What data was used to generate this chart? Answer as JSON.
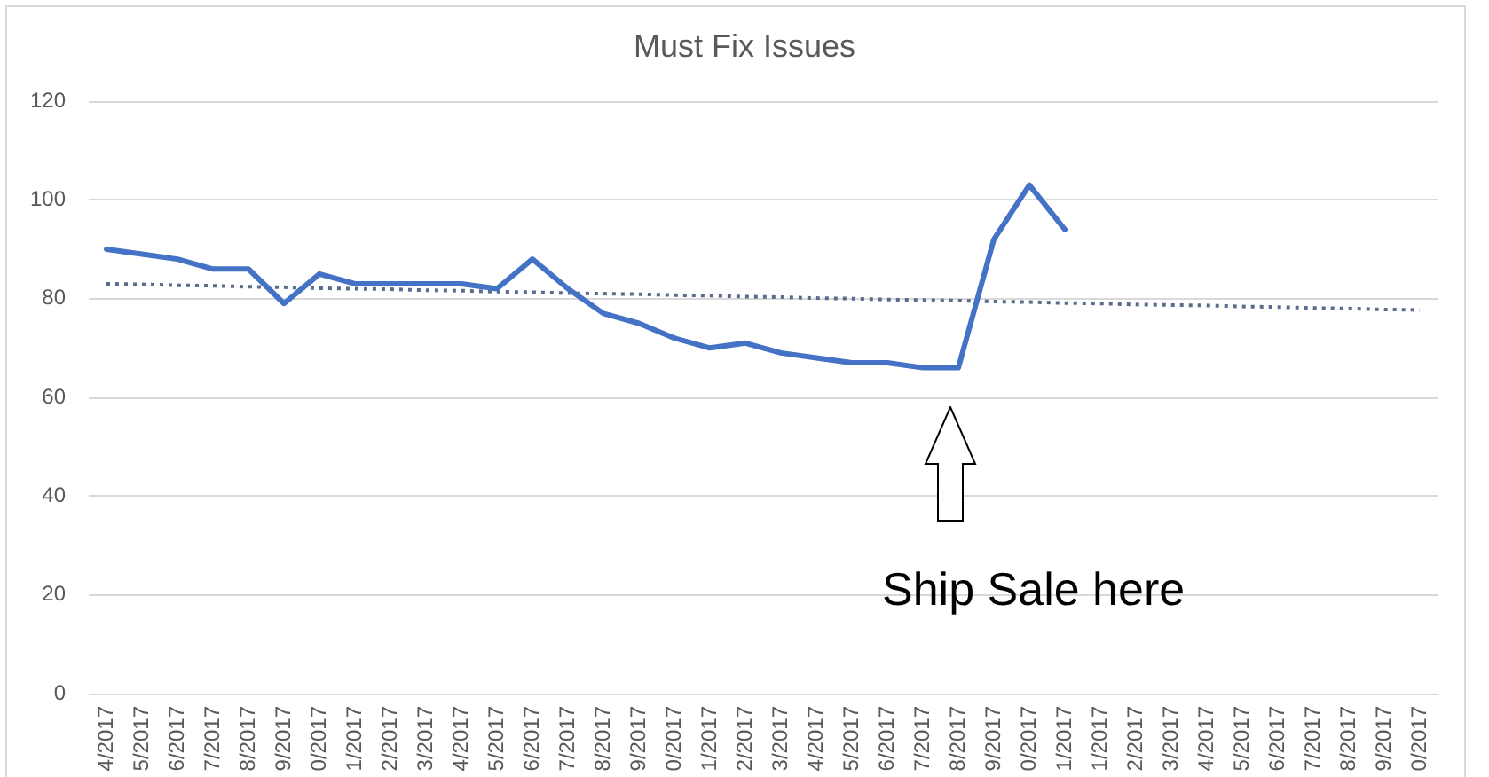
{
  "chart_data": {
    "type": "line",
    "title": "Must Fix Issues",
    "categories": [
      "4/2017",
      "5/2017",
      "6/2017",
      "7/2017",
      "8/2017",
      "9/2017",
      "0/2017",
      "1/2017",
      "2/2017",
      "3/2017",
      "4/2017",
      "5/2017",
      "6/2017",
      "7/2017",
      "8/2017",
      "9/2017",
      "0/2017",
      "1/2017",
      "2/2017",
      "3/2017",
      "4/2017",
      "5/2017",
      "6/2017",
      "7/2017",
      "8/2017",
      "9/2017",
      "0/2017",
      "1/2017",
      "1/2017",
      "2/2017",
      "3/2017",
      "4/2017",
      "5/2017",
      "6/2017",
      "7/2017",
      "8/2017",
      "9/2017",
      "0/2017"
    ],
    "series": [
      {
        "color": "#4472c4",
        "values": [
          90,
          89,
          88,
          86,
          86,
          79,
          85,
          83,
          83,
          83,
          83,
          82,
          88,
          82,
          77,
          75,
          72,
          70,
          71,
          69,
          68,
          67,
          67,
          66,
          66,
          92,
          103,
          94,
          null,
          null,
          null,
          null,
          null,
          null,
          null,
          null,
          null,
          null
        ]
      },
      {
        "type": "line",
        "color": "#5b6b8c",
        "line_style": "dotted",
        "values": [
          83.0,
          82.9,
          82.7,
          82.6,
          82.4,
          82.3,
          82.1,
          82.0,
          81.9,
          81.7,
          81.6,
          81.4,
          81.3,
          81.1,
          81.0,
          80.9,
          80.7,
          80.6,
          80.4,
          80.3,
          80.1,
          80.0,
          79.8,
          79.7,
          79.6,
          79.4,
          79.3,
          79.1,
          79.0,
          78.8,
          78.7,
          78.6,
          78.4,
          78.3,
          78.1,
          78.0,
          77.8,
          77.7
        ]
      }
    ],
    "ylim": [
      0,
      120
    ],
    "yticks": [
      0,
      20,
      40,
      60,
      80,
      100,
      120
    ],
    "grid": "y",
    "marker": "none",
    "line_style": "solid",
    "annotations": [
      "Ship Sale here"
    ]
  }
}
